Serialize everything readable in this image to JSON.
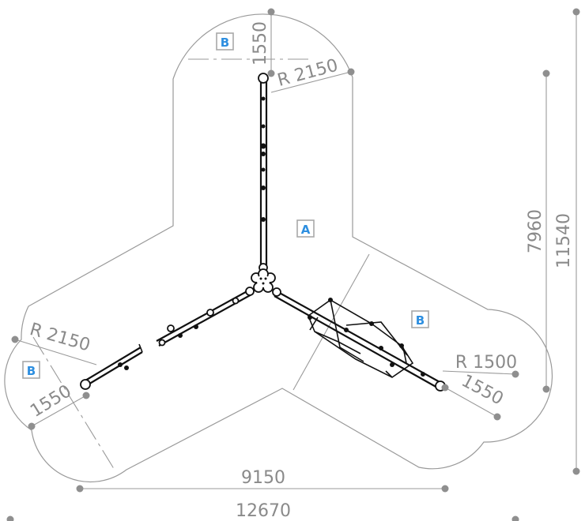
{
  "zones": {
    "a_label": "A",
    "b_top_label": "B",
    "b_right_label": "B",
    "b_left_label": "B"
  },
  "dimensions": {
    "top_offset": "1550",
    "top_radius": "R 2150",
    "left_radius": "R 2150",
    "left_offset": "1550",
    "right_radius": "R 1500",
    "right_offset": "1550",
    "inner_width": "9150",
    "overall_width": "12670",
    "inner_height": "7960",
    "overall_height": "11540"
  },
  "colors": {
    "outline": "#9a9a9a",
    "structure": "#111111",
    "zone_label": "#2e8fe0",
    "dimension_text": "#8a8a8a"
  }
}
